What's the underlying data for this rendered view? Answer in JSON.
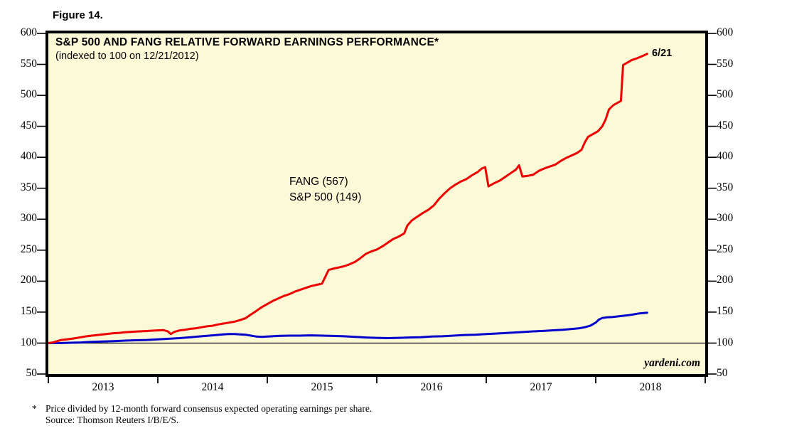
{
  "figure_label": "Figure 14.",
  "watermark": "yardeni.com",
  "footnote": {
    "marker": "*",
    "line1": "Price divided by 12-month forward consensus expected operating earnings per share.",
    "line2": "Source: Thomson Reuters I/B/E/S."
  },
  "chart_data": {
    "type": "line",
    "title": "S&P 500 AND FANG RELATIVE FORWARD EARNINGS PERFORMANCE*",
    "subtitle": "(indexed to 100 on 12/21/2012)",
    "background_color": "#FCF9D7",
    "frame_color": "#000000",
    "grid": "off",
    "reference_line_value": 100,
    "annotation": {
      "text": "6/21",
      "color": "#EE0000"
    },
    "legend": {
      "entries": [
        "FANG (567)",
        "S&P 500 (149)"
      ],
      "position": "center-left-inside-plot"
    },
    "x_axis": {
      "labels": [
        "2013",
        "2014",
        "2015",
        "2016",
        "2017",
        "2018"
      ],
      "range_years": [
        2013,
        2019
      ],
      "ticks": "year-boundaries-below-axis"
    },
    "y_axis": {
      "min": 50,
      "max": 600,
      "step": 50,
      "sides": "both"
    },
    "series": [
      {
        "name": "FANG",
        "latest_label": "FANG (567)",
        "latest_value": 567,
        "color": "#EE0000",
        "points": [
          [
            0,
            100
          ],
          [
            0.04,
            101
          ],
          [
            0.08,
            103
          ],
          [
            0.12,
            105
          ],
          [
            0.17,
            106
          ],
          [
            0.21,
            107
          ],
          [
            0.25,
            108
          ],
          [
            0.3,
            109.5
          ],
          [
            0.35,
            111
          ],
          [
            0.4,
            112
          ],
          [
            0.45,
            113
          ],
          [
            0.5,
            114
          ],
          [
            0.55,
            115
          ],
          [
            0.6,
            116
          ],
          [
            0.65,
            116.5
          ],
          [
            0.7,
            117.5
          ],
          [
            0.75,
            118
          ],
          [
            0.8,
            118.5
          ],
          [
            0.85,
            119
          ],
          [
            0.9,
            119.5
          ],
          [
            0.95,
            120
          ],
          [
            1.0,
            120.5
          ],
          [
            1.05,
            121
          ],
          [
            1.09,
            119
          ],
          [
            1.12,
            114.5
          ],
          [
            1.15,
            118
          ],
          [
            1.2,
            120.5
          ],
          [
            1.25,
            121.5
          ],
          [
            1.3,
            123
          ],
          [
            1.35,
            124
          ],
          [
            1.4,
            125.5
          ],
          [
            1.45,
            127
          ],
          [
            1.5,
            128
          ],
          [
            1.55,
            130
          ],
          [
            1.6,
            131.5
          ],
          [
            1.65,
            133
          ],
          [
            1.7,
            134.5
          ],
          [
            1.75,
            137
          ],
          [
            1.8,
            140
          ],
          [
            1.85,
            146
          ],
          [
            1.9,
            152
          ],
          [
            1.95,
            158
          ],
          [
            2.0,
            163
          ],
          [
            2.05,
            168
          ],
          [
            2.1,
            172
          ],
          [
            2.15,
            176
          ],
          [
            2.2,
            179
          ],
          [
            2.25,
            183
          ],
          [
            2.3,
            186
          ],
          [
            2.35,
            189
          ],
          [
            2.4,
            192
          ],
          [
            2.45,
            194
          ],
          [
            2.5,
            196
          ],
          [
            2.53,
            207
          ],
          [
            2.56,
            218
          ],
          [
            2.6,
            220
          ],
          [
            2.65,
            222
          ],
          [
            2.7,
            224
          ],
          [
            2.75,
            227
          ],
          [
            2.8,
            231
          ],
          [
            2.85,
            237
          ],
          [
            2.9,
            244
          ],
          [
            2.95,
            248
          ],
          [
            3.0,
            251
          ],
          [
            3.05,
            256
          ],
          [
            3.1,
            262
          ],
          [
            3.15,
            268
          ],
          [
            3.2,
            272
          ],
          [
            3.25,
            277
          ],
          [
            3.28,
            290
          ],
          [
            3.32,
            298
          ],
          [
            3.37,
            304
          ],
          [
            3.42,
            310
          ],
          [
            3.47,
            315
          ],
          [
            3.52,
            322
          ],
          [
            3.57,
            333
          ],
          [
            3.62,
            342
          ],
          [
            3.67,
            350
          ],
          [
            3.72,
            356
          ],
          [
            3.77,
            361
          ],
          [
            3.82,
            365
          ],
          [
            3.87,
            371
          ],
          [
            3.92,
            376
          ],
          [
            3.96,
            382
          ],
          [
            3.99,
            384
          ],
          [
            4.02,
            353
          ],
          [
            4.07,
            358
          ],
          [
            4.12,
            362
          ],
          [
            4.17,
            368
          ],
          [
            4.22,
            374
          ],
          [
            4.27,
            380
          ],
          [
            4.3,
            387
          ],
          [
            4.33,
            369
          ],
          [
            4.38,
            370
          ],
          [
            4.43,
            372
          ],
          [
            4.48,
            378
          ],
          [
            4.53,
            382
          ],
          [
            4.58,
            385
          ],
          [
            4.63,
            388
          ],
          [
            4.68,
            394
          ],
          [
            4.73,
            399
          ],
          [
            4.78,
            403
          ],
          [
            4.83,
            407
          ],
          [
            4.87,
            412
          ],
          [
            4.9,
            424
          ],
          [
            4.93,
            433
          ],
          [
            4.97,
            437
          ],
          [
            5.02,
            442
          ],
          [
            5.06,
            450
          ],
          [
            5.09,
            461
          ],
          [
            5.12,
            477
          ],
          [
            5.16,
            484
          ],
          [
            5.2,
            488
          ],
          [
            5.23,
            491
          ],
          [
            5.25,
            549
          ],
          [
            5.29,
            553
          ],
          [
            5.33,
            557
          ],
          [
            5.38,
            560
          ],
          [
            5.42,
            563
          ],
          [
            5.47,
            567
          ]
        ]
      },
      {
        "name": "S&P 500",
        "latest_label": "S&P 500 (149)",
        "latest_value": 149,
        "color": "#0000CC",
        "points": [
          [
            0,
            100
          ],
          [
            0.1,
            100
          ],
          [
            0.2,
            100.5
          ],
          [
            0.3,
            101
          ],
          [
            0.4,
            102
          ],
          [
            0.5,
            102.5
          ],
          [
            0.6,
            103
          ],
          [
            0.7,
            104
          ],
          [
            0.8,
            104.5
          ],
          [
            0.9,
            105
          ],
          [
            1.0,
            106
          ],
          [
            1.1,
            107
          ],
          [
            1.2,
            108
          ],
          [
            1.3,
            109.5
          ],
          [
            1.4,
            111
          ],
          [
            1.5,
            112.5
          ],
          [
            1.6,
            114
          ],
          [
            1.65,
            114.5
          ],
          [
            1.7,
            114.5
          ],
          [
            1.75,
            114
          ],
          [
            1.8,
            113.5
          ],
          [
            1.85,
            112
          ],
          [
            1.9,
            110.5
          ],
          [
            1.95,
            110
          ],
          [
            2.0,
            110.5
          ],
          [
            2.1,
            111.5
          ],
          [
            2.2,
            112
          ],
          [
            2.3,
            112
          ],
          [
            2.4,
            112.5
          ],
          [
            2.5,
            112
          ],
          [
            2.6,
            111.5
          ],
          [
            2.7,
            111
          ],
          [
            2.8,
            110
          ],
          [
            2.9,
            109
          ],
          [
            3.0,
            108.5
          ],
          [
            3.1,
            108
          ],
          [
            3.2,
            108.5
          ],
          [
            3.3,
            109
          ],
          [
            3.4,
            109.5
          ],
          [
            3.5,
            110.5
          ],
          [
            3.6,
            111
          ],
          [
            3.7,
            112
          ],
          [
            3.8,
            113
          ],
          [
            3.9,
            113.5
          ],
          [
            4.0,
            114.5
          ],
          [
            4.1,
            115.5
          ],
          [
            4.2,
            116.5
          ],
          [
            4.3,
            117.5
          ],
          [
            4.4,
            118.5
          ],
          [
            4.5,
            119.5
          ],
          [
            4.6,
            120.5
          ],
          [
            4.7,
            121.5
          ],
          [
            4.8,
            123
          ],
          [
            4.85,
            124
          ],
          [
            4.9,
            125.5
          ],
          [
            4.95,
            128
          ],
          [
            5.0,
            133
          ],
          [
            5.03,
            138
          ],
          [
            5.06,
            140.5
          ],
          [
            5.1,
            141.5
          ],
          [
            5.15,
            142
          ],
          [
            5.2,
            143
          ],
          [
            5.25,
            144
          ],
          [
            5.3,
            145
          ],
          [
            5.35,
            146.5
          ],
          [
            5.4,
            148
          ],
          [
            5.47,
            149
          ]
        ]
      }
    ]
  }
}
